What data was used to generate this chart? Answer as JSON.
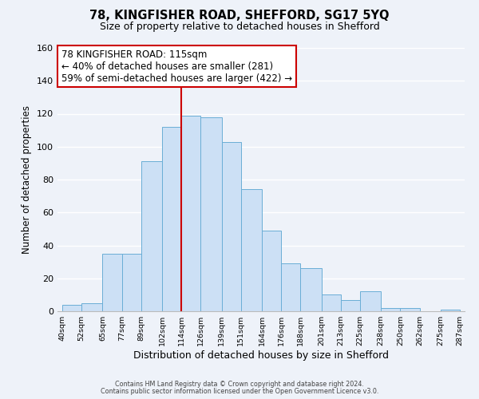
{
  "title1": "78, KINGFISHER ROAD, SHEFFORD, SG17 5YQ",
  "title2": "Size of property relative to detached houses in Shefford",
  "xlabel": "Distribution of detached houses by size in Shefford",
  "ylabel": "Number of detached properties",
  "bin_edges": [
    40,
    52,
    65,
    77,
    89,
    102,
    114,
    126,
    139,
    151,
    164,
    176,
    188,
    201,
    213,
    225,
    238,
    250,
    262,
    275,
    287
  ],
  "bin_labels": [
    "40sqm",
    "52sqm",
    "65sqm",
    "77sqm",
    "89sqm",
    "102sqm",
    "114sqm",
    "126sqm",
    "139sqm",
    "151sqm",
    "164sqm",
    "176sqm",
    "188sqm",
    "201sqm",
    "213sqm",
    "225sqm",
    "238sqm",
    "250sqm",
    "262sqm",
    "275sqm",
    "287sqm"
  ],
  "bar_heights": [
    4,
    5,
    35,
    35,
    91,
    112,
    119,
    118,
    103,
    74,
    49,
    29,
    26,
    10,
    7,
    12,
    2,
    2,
    0,
    1
  ],
  "bar_color": "#cce0f5",
  "bar_edge_color": "#6aaed6",
  "vline_x": 114,
  "vline_color": "#cc0000",
  "annotation_line1": "78 KINGFISHER ROAD: 115sqm",
  "annotation_line2": "← 40% of detached houses are smaller (281)",
  "annotation_line3": "59% of semi-detached houses are larger (422) →",
  "annotation_box_color": "#ffffff",
  "annotation_box_edge_color": "#cc0000",
  "ylim": [
    0,
    160
  ],
  "yticks": [
    0,
    20,
    40,
    60,
    80,
    100,
    120,
    140,
    160
  ],
  "footer1": "Contains HM Land Registry data © Crown copyright and database right 2024.",
  "footer2": "Contains public sector information licensed under the Open Government Licence v3.0.",
  "bg_color": "#eef2f9",
  "grid_color": "#ffffff"
}
